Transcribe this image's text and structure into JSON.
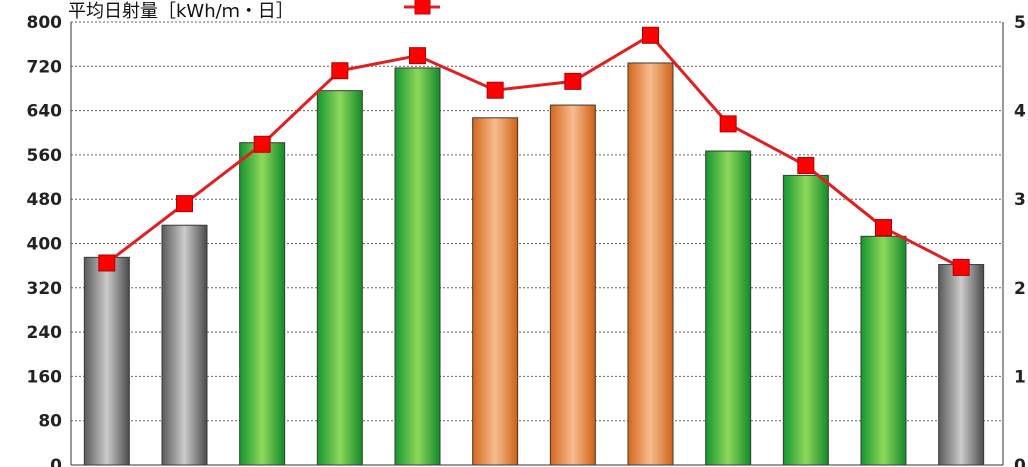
{
  "chart_data": {
    "type": "bar",
    "left_axis": {
      "ticks": [
        "0",
        "80",
        "160",
        "240",
        "320",
        "400",
        "480",
        "560",
        "640",
        "720",
        "800"
      ],
      "ylim": [
        0,
        800
      ]
    },
    "right_axis": {
      "visible_tick_digits": [
        "0",
        "1",
        "2",
        "3",
        "4",
        "5"
      ],
      "ylim": [
        0,
        5
      ]
    },
    "grid": true,
    "bar_values": [
      375,
      433,
      582,
      676,
      717,
      627,
      650,
      726,
      567,
      523,
      413,
      362
    ],
    "bar_colors": [
      "gray",
      "gray",
      "green",
      "green",
      "green",
      "orange",
      "orange",
      "orange",
      "green",
      "green",
      "green",
      "gray"
    ],
    "line_series": {
      "name": "平均日射量［kWh/ｍ・日］",
      "axis": "right",
      "color": "#e02020",
      "values": [
        2.28,
        2.95,
        3.62,
        4.45,
        4.62,
        4.23,
        4.33,
        4.85,
        3.85,
        3.38,
        2.68,
        2.23
      ]
    },
    "colors": {
      "gray": [
        "#555555",
        "#c8c8c8"
      ],
      "green": [
        "#1aa03a",
        "#8fd858"
      ],
      "orange": [
        "#d86a1a",
        "#f7b98a"
      ],
      "line": "#e02020",
      "marker": "#ff0000"
    }
  }
}
